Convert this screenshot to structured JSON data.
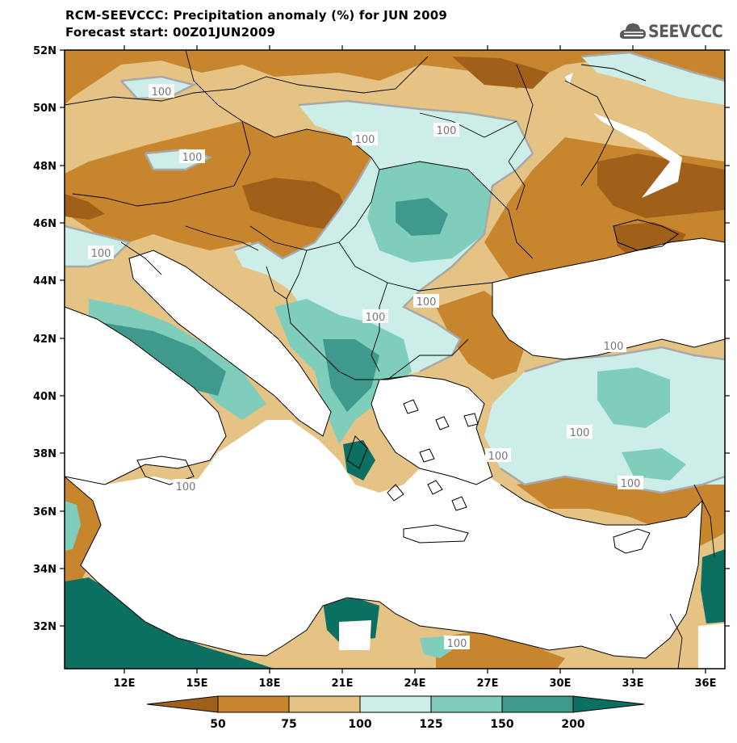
{
  "title_line1": "RCM-SEEVCCC: Precipitation anomaly (%) for JUN 2009",
  "title_line2": "Forecast start: 00Z01JUN2009",
  "logo": {
    "text": "SEEVCCC",
    "icon": "cloud-icon"
  },
  "map": {
    "lat_ticks": [
      "52N",
      "50N",
      "48N",
      "46N",
      "44N",
      "42N",
      "40N",
      "38N",
      "36N",
      "34N",
      "32N"
    ],
    "lon_ticks": [
      "12E",
      "15E",
      "18E",
      "21E",
      "24E",
      "27E",
      "30E",
      "33E",
      "36E"
    ],
    "contour_labels": [
      "100",
      "100",
      "100",
      "100",
      "100",
      "100",
      "100",
      "100",
      "100",
      "100",
      "100",
      "100",
      "100"
    ]
  },
  "colorbar": {
    "labels": [
      "50",
      "75",
      "100",
      "125",
      "150",
      "200"
    ],
    "colors": [
      "#a0601a",
      "#c7862e",
      "#e4c384",
      "#cdeee8",
      "#7fcdbb",
      "#3f9a8d",
      "#0b6f62"
    ]
  }
}
